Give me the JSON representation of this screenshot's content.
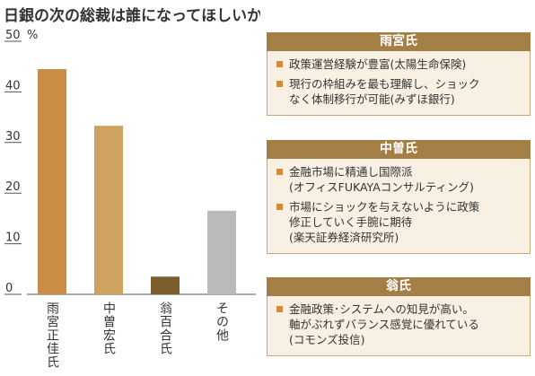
{
  "chart_data": {
    "type": "bar",
    "title": "日銀の次の総裁は誰になってほしいか",
    "y_unit": "%",
    "categories": [
      "雨宮正佳氏",
      "中曽宏氏",
      "翁百合氏",
      "その他"
    ],
    "values": [
      44.5,
      33.3,
      3.5,
      16.5
    ],
    "colors": [
      "#c98d45",
      "#cda15e",
      "#7b5e2c",
      "#b9b9b9"
    ],
    "ylim": [
      0,
      50
    ],
    "yticks": [
      0,
      10,
      20,
      30,
      40,
      50
    ]
  },
  "panels": [
    {
      "title": "雨宮氏",
      "items": [
        {
          "lines": [
            "政策運営経験が豊富(太陽生命保険)"
          ]
        },
        {
          "lines": [
            "現行の枠組みを最も理解し、ショック",
            "なく体制移行が可能(みずほ銀行)"
          ]
        }
      ]
    },
    {
      "title": "中曽氏",
      "items": [
        {
          "lines": [
            "金融市場に精通し国際派",
            "(オフィスFUKAYAコンサルティング)"
          ]
        },
        {
          "lines": [
            "市場にショックを与えないように政策",
            "修正していく手腕に期待",
            "(楽天証券経済研究所)"
          ]
        }
      ]
    },
    {
      "title": "翁氏",
      "items": [
        {
          "lines": [
            "金融政策･システムへの知見が高い。",
            "軸がぶれずバランス感覚に優れている",
            "(コモンズ投信)"
          ]
        }
      ]
    }
  ]
}
